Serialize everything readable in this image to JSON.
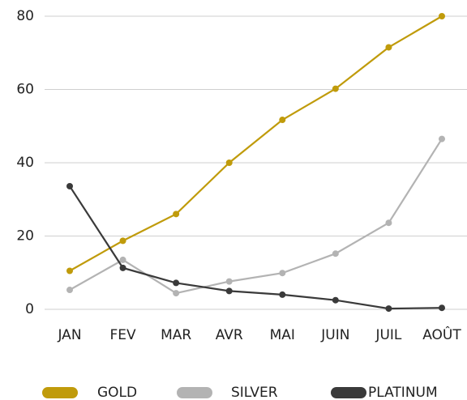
{
  "chart_data": {
    "type": "line",
    "categories": [
      "JAN",
      "FEV",
      "MAR",
      "AVR",
      "MAI",
      "JUIN",
      "JUIL",
      "AOÛT"
    ],
    "series": [
      {
        "name": "GOLD",
        "color": "#c09b0b",
        "values": [
          10.5,
          18.7,
          26,
          40,
          51.7,
          60.2,
          71.5,
          80
        ]
      },
      {
        "name": "SILVER",
        "color": "#b3b3b3",
        "values": [
          5.3,
          13.5,
          4.4,
          7.6,
          9.9,
          15.2,
          23.6,
          46.5
        ]
      },
      {
        "name": "PLATINUM",
        "color": "#3a3a3a",
        "values": [
          33.6,
          11.3,
          7.2,
          5,
          4,
          2.5,
          0.2,
          0.4
        ]
      }
    ],
    "ylim": [
      0,
      80
    ],
    "yticks": [
      0,
      20,
      40,
      60,
      80
    ],
    "grid": true,
    "legend": "bottom"
  }
}
